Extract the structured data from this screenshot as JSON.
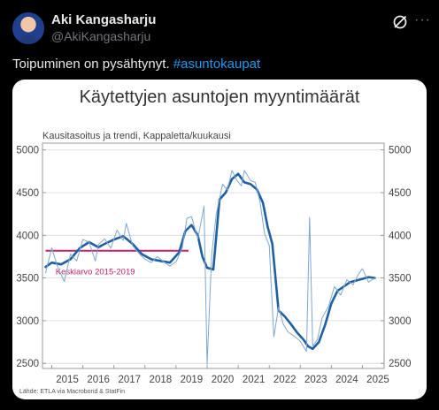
{
  "author": {
    "name": "Aki Kangasharju",
    "handle": "@AkiKangasharju"
  },
  "tweet": {
    "text": "Toipuminen on pysähtynyt.",
    "hashtag": "#asuntokaupat"
  },
  "icons": {
    "grok": "grok-icon",
    "more": "more-icon"
  },
  "chart_data": {
    "type": "line",
    "title": "Käytettyjen asuntojen myyntimäärät",
    "subtitle": "Kausitasoitus ja trendi, Kappaletta/kuukausi",
    "source": "Lähde: ETLA via Macrobond & StatFin",
    "xlabel": "",
    "ylabel": "",
    "x_ticks": [
      "2015",
      "2016",
      "2017",
      "2018",
      "2019",
      "2020",
      "2021",
      "2022",
      "2023",
      "2024",
      "2025"
    ],
    "y_ticks": [
      2500,
      3000,
      3500,
      4000,
      4500,
      5000
    ],
    "xlim": [
      2014.7,
      2025.7
    ],
    "ylim": [
      2440,
      5080
    ],
    "grid": true,
    "colors": {
      "trend": "#1f5fa3",
      "sa": "#7fa7d4",
      "mean": "#c0246d"
    },
    "mean_line": {
      "label": "Keskiarvo 2015-2019",
      "value": 3820,
      "x_start": 2014.8,
      "x_end": 2019.4
    },
    "series": [
      {
        "role": "trend",
        "x": [
          2014.8,
          2015.0,
          2015.3,
          2015.6,
          2015.9,
          2016.2,
          2016.5,
          2016.7,
          2017.0,
          2017.3,
          2017.6,
          2017.9,
          2018.2,
          2018.5,
          2018.8,
          2019.1,
          2019.3,
          2019.5,
          2019.7,
          2019.85,
          2020.0,
          2020.2,
          2020.4,
          2020.6,
          2020.8,
          2021.0,
          2021.2,
          2021.4,
          2021.6,
          2021.8,
          2021.95,
          2022.1,
          2022.3,
          2022.5,
          2022.7,
          2022.9,
          2023.1,
          2023.25,
          2023.4,
          2023.6,
          2023.8,
          2024.0,
          2024.2,
          2024.4,
          2024.6,
          2024.8,
          2025.0,
          2025.2,
          2025.4
        ],
        "y": [
          3630,
          3680,
          3660,
          3720,
          3850,
          3920,
          3860,
          3900,
          3950,
          3990,
          3900,
          3780,
          3720,
          3700,
          3680,
          3800,
          4050,
          4120,
          4000,
          3750,
          3620,
          3600,
          4420,
          4500,
          4660,
          4720,
          4620,
          4600,
          4540,
          4380,
          4100,
          3900,
          3120,
          3050,
          2960,
          2860,
          2780,
          2700,
          2670,
          2750,
          2950,
          3200,
          3350,
          3400,
          3450,
          3470,
          3490,
          3510,
          3500
        ]
      },
      {
        "role": "seasonally_adjusted",
        "x": [
          2014.8,
          2015.0,
          2015.2,
          2015.4,
          2015.6,
          2015.8,
          2016.0,
          2016.2,
          2016.4,
          2016.5,
          2016.7,
          2016.9,
          2017.1,
          2017.3,
          2017.4,
          2017.6,
          2017.8,
          2018.0,
          2018.2,
          2018.4,
          2018.6,
          2018.8,
          2019.0,
          2019.2,
          2019.35,
          2019.5,
          2019.7,
          2019.9,
          2020.0,
          2020.15,
          2020.3,
          2020.5,
          2020.65,
          2020.8,
          2020.95,
          2021.1,
          2021.2,
          2021.4,
          2021.55,
          2021.7,
          2021.85,
          2022.0,
          2022.15,
          2022.3,
          2022.45,
          2022.6,
          2022.8,
          2023.0,
          2023.2,
          2023.3,
          2023.4,
          2023.55,
          2023.7,
          2023.9,
          2024.1,
          2024.3,
          2024.5,
          2024.7,
          2024.85,
          2025.0,
          2025.2,
          2025.4
        ],
        "y": [
          3560,
          3850,
          3620,
          3460,
          3780,
          3700,
          3950,
          3920,
          3700,
          3890,
          3960,
          3850,
          4060,
          3940,
          4140,
          3880,
          3790,
          3720,
          3680,
          3750,
          3690,
          3640,
          3690,
          3850,
          4200,
          4220,
          3960,
          4340,
          2490,
          3780,
          4260,
          4600,
          4530,
          4760,
          4650,
          4580,
          4760,
          4640,
          4620,
          4400,
          4020,
          3880,
          2810,
          3160,
          2960,
          2870,
          2820,
          2760,
          2640,
          4210,
          2700,
          2780,
          3030,
          3160,
          3400,
          3300,
          3480,
          3420,
          3530,
          3610,
          3450,
          3500
        ]
      }
    ]
  }
}
